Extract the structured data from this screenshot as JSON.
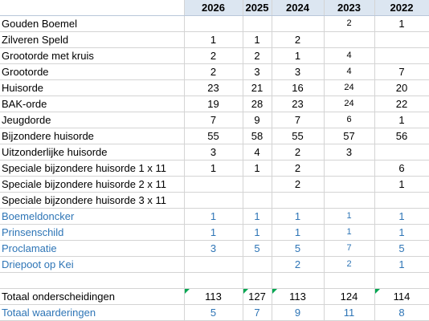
{
  "years": [
    "2026",
    "2025",
    "2024",
    "2023",
    "2022"
  ],
  "rows": [
    {
      "label": "Gouden Boemel",
      "values": [
        "",
        "",
        "",
        "2",
        "1"
      ],
      "small": [
        false,
        false,
        false,
        true,
        false
      ]
    },
    {
      "label": "Zilveren Speld",
      "values": [
        "1",
        "1",
        "2",
        "",
        ""
      ],
      "small": [
        false,
        false,
        false,
        false,
        false
      ]
    },
    {
      "label": "Grootorde met kruis",
      "values": [
        "2",
        "2",
        "1",
        "4",
        ""
      ],
      "small": [
        false,
        false,
        false,
        true,
        false
      ]
    },
    {
      "label": "Grootorde",
      "values": [
        "2",
        "3",
        "3",
        "4",
        "7"
      ],
      "small": [
        false,
        false,
        false,
        true,
        false
      ]
    },
    {
      "label": "Huisorde",
      "values": [
        "23",
        "21",
        "16",
        "24",
        "20"
      ],
      "small": [
        false,
        false,
        false,
        true,
        false
      ]
    },
    {
      "label": "BAK-orde",
      "values": [
        "19",
        "28",
        "23",
        "24",
        "22"
      ],
      "small": [
        false,
        false,
        false,
        true,
        false
      ]
    },
    {
      "label": "Jeugdorde",
      "values": [
        "7",
        "9",
        "7",
        "6",
        "1"
      ],
      "small": [
        false,
        false,
        false,
        true,
        false
      ]
    },
    {
      "label": "Bijzondere huisorde",
      "values": [
        "55",
        "58",
        "55",
        "57",
        "56"
      ],
      "small": [
        false,
        false,
        false,
        false,
        false
      ]
    },
    {
      "label": "Uitzonderlijke huisorde",
      "values": [
        "3",
        "4",
        "2",
        "3",
        ""
      ],
      "small": [
        false,
        false,
        false,
        false,
        false
      ]
    },
    {
      "label": "Speciale bijzondere huisorde 1 x 11",
      "values": [
        "1",
        "1",
        "2",
        "",
        "6"
      ],
      "small": [
        false,
        false,
        false,
        false,
        false
      ]
    },
    {
      "label": "Speciale bijzondere huisorde 2 x 11",
      "values": [
        "",
        "",
        "2",
        "",
        "1"
      ],
      "small": [
        false,
        false,
        false,
        false,
        false
      ]
    },
    {
      "label": "Speciale bijzondere huisorde 3 x 11",
      "values": [
        "",
        "",
        "",
        "",
        ""
      ],
      "small": [
        false,
        false,
        false,
        false,
        false
      ]
    },
    {
      "label": "Boemeldoncker",
      "values": [
        "1",
        "1",
        "1",
        "1",
        "1"
      ],
      "small": [
        false,
        false,
        false,
        true,
        false
      ],
      "blue": true
    },
    {
      "label": "Prinsenschild",
      "values": [
        "1",
        "1",
        "1",
        "1",
        "1"
      ],
      "small": [
        false,
        false,
        false,
        true,
        false
      ],
      "blue": true
    },
    {
      "label": "Proclamatie",
      "values": [
        "3",
        "5",
        "5",
        "7",
        "5"
      ],
      "small": [
        false,
        false,
        false,
        true,
        false
      ],
      "blue": true
    },
    {
      "label": "Driepoot op Kei",
      "values": [
        "",
        "",
        "2",
        "2",
        "1"
      ],
      "small": [
        false,
        false,
        false,
        true,
        false
      ],
      "blue": true
    }
  ],
  "totals": [
    {
      "label": "Totaal onderscheidingen",
      "values": [
        "113",
        "127",
        "113",
        "124",
        "114"
      ],
      "flags": [
        true,
        true,
        true,
        false,
        true
      ]
    },
    {
      "label": "Totaal waarderingen",
      "values": [
        "5",
        "7",
        "9",
        "11",
        "8"
      ],
      "flags": [
        false,
        false,
        false,
        false,
        false
      ],
      "blue": true
    }
  ],
  "colors": {
    "header_fill": "#dce6f1",
    "blue_text": "#2e75b6",
    "flag": "#00a651"
  }
}
